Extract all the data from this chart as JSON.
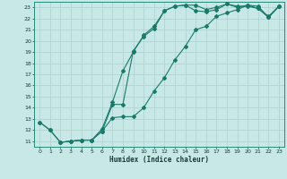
{
  "xlabel": "Humidex (Indice chaleur)",
  "bg_color": "#c8e8e8",
  "grid_color": "#b0d4d4",
  "line_color": "#1a7a6a",
  "xlim": [
    -0.5,
    23.5
  ],
  "ylim": [
    10.5,
    23.5
  ],
  "xticks": [
    0,
    1,
    2,
    3,
    4,
    5,
    6,
    7,
    8,
    9,
    10,
    11,
    12,
    13,
    14,
    15,
    16,
    17,
    18,
    19,
    20,
    21,
    22,
    23
  ],
  "yticks": [
    11,
    12,
    13,
    14,
    15,
    16,
    17,
    18,
    19,
    20,
    21,
    22,
    23
  ],
  "line1_x": [
    0,
    1,
    2,
    3,
    4,
    5,
    6,
    7,
    8,
    9,
    10,
    11,
    12,
    13,
    14,
    15,
    16,
    17,
    18,
    19,
    20,
    21,
    22,
    23
  ],
  "line1_y": [
    12.7,
    12.0,
    10.9,
    11.0,
    11.1,
    11.1,
    12.1,
    14.5,
    17.3,
    19.0,
    20.5,
    21.3,
    22.7,
    23.1,
    23.2,
    23.2,
    22.8,
    23.0,
    23.3,
    23.1,
    23.1,
    22.9,
    22.2,
    23.1
  ],
  "line2_x": [
    2,
    3,
    4,
    5,
    6,
    7,
    8,
    9,
    10,
    11,
    12,
    13,
    14,
    15,
    16,
    17,
    18,
    19,
    20,
    21,
    22,
    23
  ],
  "line2_y": [
    10.9,
    11.0,
    11.1,
    11.1,
    11.9,
    14.3,
    14.3,
    19.1,
    20.4,
    21.1,
    22.7,
    23.1,
    23.2,
    22.7,
    22.6,
    22.8,
    23.3,
    23.0,
    23.2,
    22.9,
    22.1,
    23.1
  ],
  "line3_x": [
    0,
    1,
    2,
    3,
    4,
    5,
    6,
    7,
    8,
    9,
    10,
    11,
    12,
    13,
    14,
    15,
    16,
    17,
    18,
    19,
    20,
    21,
    22,
    23
  ],
  "line3_y": [
    12.7,
    12.0,
    10.9,
    11.0,
    11.1,
    11.1,
    11.9,
    13.1,
    13.2,
    13.2,
    14.0,
    15.5,
    16.7,
    18.3,
    19.5,
    21.0,
    21.3,
    22.2,
    22.5,
    22.8,
    23.2,
    23.1,
    22.1,
    23.1
  ]
}
